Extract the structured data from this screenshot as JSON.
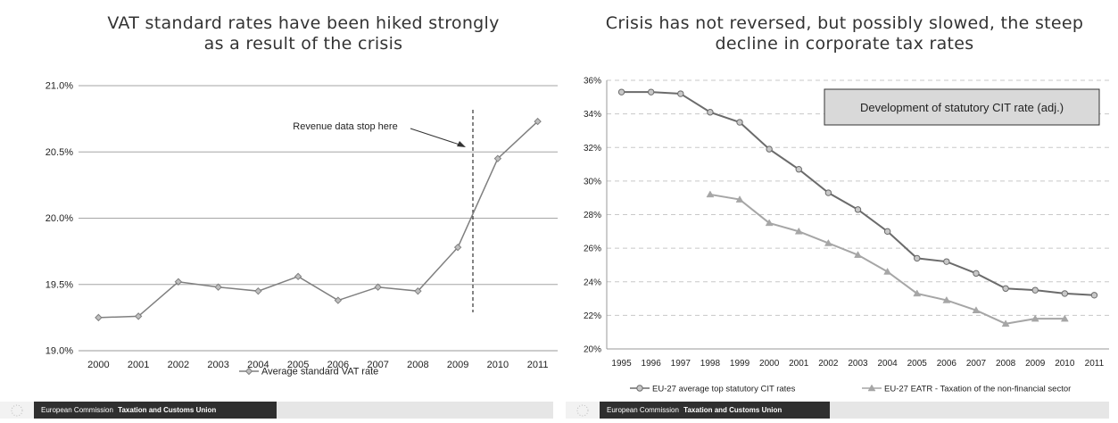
{
  "left": {
    "title_line1": "VAT standard rates have been hiked strongly",
    "title_line2": "as a result of the crisis",
    "annotation": "Revenue data stop here",
    "footer_org": "European Commission",
    "footer_unit": "Taxation and Customs Union"
  },
  "right": {
    "title_line1": "Crisis has not reversed, but possibly slowed, the steep",
    "title_line2": "decline in corporate tax rates",
    "box_label": "Development of statutory CIT rate (adj.)",
    "footer_org": "European Commission",
    "footer_unit": "Taxation and Customs Union"
  },
  "chart_data": [
    {
      "type": "line",
      "categories": [
        "2000",
        "2001",
        "2002",
        "2003",
        "2004",
        "2005",
        "2006",
        "2007",
        "2008",
        "2009",
        "2010",
        "2011"
      ],
      "series": [
        {
          "name": "Average standard VAT rate",
          "color": "#7f7f7f",
          "marker": "diamond",
          "values": [
            19.25,
            19.26,
            19.52,
            19.48,
            19.45,
            19.56,
            19.38,
            19.48,
            19.45,
            19.78,
            20.45,
            20.73
          ]
        }
      ],
      "yticks": [
        "19.0%",
        "19.5%",
        "20.0%",
        "20.5%",
        "21.0%"
      ],
      "ylim": [
        19.0,
        21.0
      ],
      "grid": true,
      "legend": "bottom"
    },
    {
      "type": "line",
      "categories": [
        "1995",
        "1996",
        "1997",
        "1998",
        "1999",
        "2000",
        "2001",
        "2002",
        "2003",
        "2004",
        "2005",
        "2006",
        "2007",
        "2008",
        "2009",
        "2010",
        "2011"
      ],
      "series": [
        {
          "name": "EU-27 average top statutory CIT rates",
          "color": "#6b6b6b",
          "marker": "circle",
          "values": [
            35.3,
            35.3,
            35.2,
            34.1,
            33.5,
            31.9,
            30.7,
            29.3,
            28.3,
            27.0,
            25.4,
            25.2,
            24.5,
            23.6,
            23.5,
            23.3,
            23.2
          ]
        },
        {
          "name": "EU-27 EATR - Taxation of the non-financial sector",
          "color": "#a6a6a6",
          "marker": "triangle",
          "values": [
            null,
            null,
            null,
            29.2,
            28.9,
            27.5,
            27.0,
            26.3,
            25.6,
            24.6,
            23.3,
            22.9,
            22.3,
            21.5,
            21.8,
            21.8,
            null
          ]
        }
      ],
      "yticks": [
        "20%",
        "22%",
        "24%",
        "26%",
        "28%",
        "30%",
        "32%",
        "34%",
        "36%"
      ],
      "ylim": [
        20,
        36
      ],
      "grid": true,
      "legend": "bottom"
    }
  ]
}
